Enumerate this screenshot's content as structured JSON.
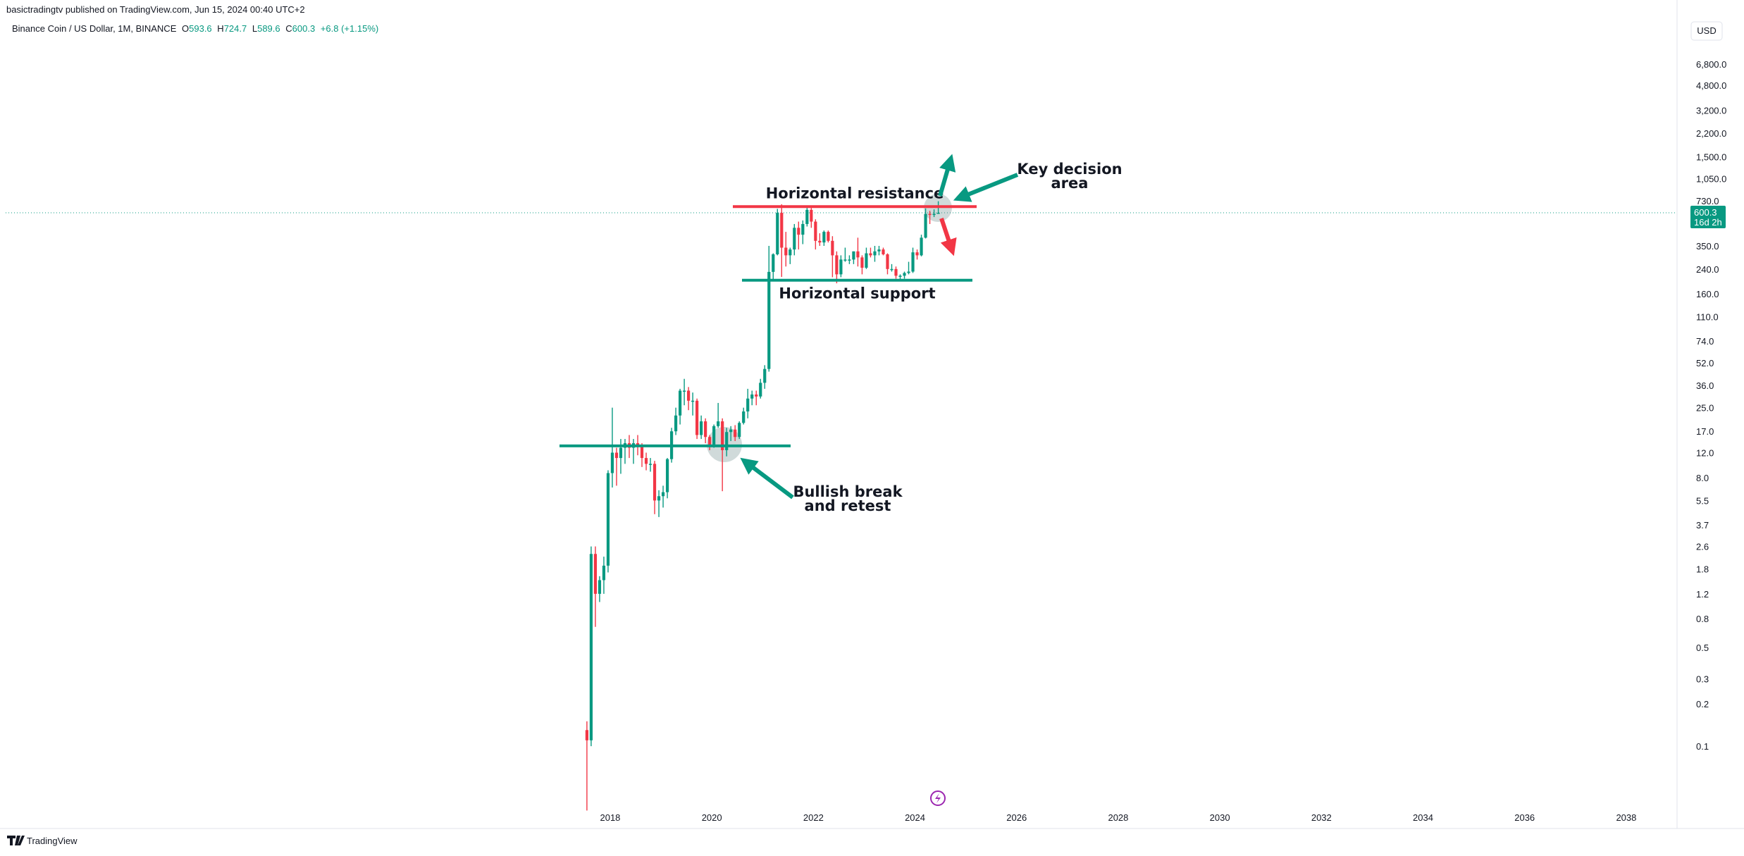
{
  "header": {
    "published": "basictradingtv published on TradingView.com, Jun 15, 2024 00:40 UTC+2",
    "symbol": "Binance Coin / US Dollar, 1M, BINANCE",
    "ohlc_letters": [
      "O",
      "H",
      "L",
      "C"
    ],
    "change": "+6.8 (+1.15%)",
    "currency": "USD",
    "countdown": "16d 2h"
  },
  "footer": "TradingView",
  "chart_data": {
    "type": "candlestick",
    "x": [
      "2017-07",
      "2017-08",
      "2017-09",
      "2017-10",
      "2017-11",
      "2017-12",
      "2018-01",
      "2018-02",
      "2018-03",
      "2018-04",
      "2018-05",
      "2018-06",
      "2018-07",
      "2018-08",
      "2018-09",
      "2018-10",
      "2018-11",
      "2018-12",
      "2019-01",
      "2019-02",
      "2019-03",
      "2019-04",
      "2019-05",
      "2019-06",
      "2019-07",
      "2019-08",
      "2019-09",
      "2019-10",
      "2019-11",
      "2019-12",
      "2020-01",
      "2020-02",
      "2020-03",
      "2020-04",
      "2020-05",
      "2020-06",
      "2020-07",
      "2020-08",
      "2020-09",
      "2020-10",
      "2020-11",
      "2020-12",
      "2021-01",
      "2021-02",
      "2021-03",
      "2021-04",
      "2021-05",
      "2021-06",
      "2021-07",
      "2021-08",
      "2021-09",
      "2021-10",
      "2021-11",
      "2021-12",
      "2022-01",
      "2022-02",
      "2022-03",
      "2022-04",
      "2022-05",
      "2022-06",
      "2022-07",
      "2022-08",
      "2022-09",
      "2022-10",
      "2022-11",
      "2022-12",
      "2023-01",
      "2023-02",
      "2023-03",
      "2023-04",
      "2023-05",
      "2023-06",
      "2023-07",
      "2023-08",
      "2023-09",
      "2023-10",
      "2023-11",
      "2023-12",
      "2024-01",
      "2024-02",
      "2024-03",
      "2024-04",
      "2024-05",
      "2024-06"
    ],
    "open": [
      0.13,
      0.11,
      2.3,
      1.2,
      1.5,
      1.9,
      8.6,
      12,
      11,
      13,
      14,
      13,
      14,
      13.5,
      11,
      10,
      10,
      5.5,
      5.9,
      6.3,
      10.8,
      17,
      22,
      33,
      33,
      28,
      28,
      16,
      20,
      15.5,
      13.7,
      18.5,
      20,
      12.5,
      16.8,
      17.5,
      15.5,
      19.5,
      23.5,
      29,
      31,
      30,
      37.5,
      47,
      229,
      305,
      600,
      340,
      300,
      330,
      470,
      420,
      500,
      630,
      520,
      380,
      370,
      440,
      380,
      300,
      220,
      280,
      280,
      280,
      320,
      290,
      245,
      310,
      300,
      320,
      330,
      305,
      240,
      240,
      215,
      215,
      225,
      230,
      315,
      300,
      400,
      590,
      580,
      593.6
    ],
    "high": [
      0.15,
      2.6,
      2.6,
      1.6,
      2.2,
      9,
      25,
      13,
      15,
      15,
      16,
      15,
      16,
      14,
      12,
      11,
      10.5,
      6.5,
      7,
      11,
      18,
      25,
      34,
      40,
      35,
      32,
      29,
      22,
      21,
      16,
      19,
      27,
      21,
      18,
      18.5,
      18.8,
      20,
      25,
      34,
      33,
      33,
      40,
      50,
      350,
      310,
      640,
      690,
      440,
      340,
      500,
      520,
      530,
      669,
      650,
      540,
      430,
      450,
      450,
      410,
      320,
      300,
      340,
      300,
      320,
      400,
      300,
      340,
      340,
      350,
      350,
      340,
      310,
      260,
      250,
      220,
      230,
      270,
      340,
      330,
      420,
      645,
      620,
      635,
      724.7
    ],
    "low": [
      0.035,
      0.1,
      0.7,
      1.05,
      1.2,
      1.7,
      6.8,
      7,
      8.5,
      10,
      11,
      10,
      11.5,
      9.5,
      9,
      8.8,
      4.4,
      4.2,
      4.9,
      5.7,
      10.2,
      16,
      19,
      26,
      24,
      22,
      15,
      15,
      14,
      12.5,
      13,
      18,
      6.4,
      11.3,
      14.5,
      14.5,
      15,
      19,
      21,
      26,
      26,
      29,
      34,
      45,
      200,
      300,
      211,
      250,
      260,
      300,
      330,
      360,
      480,
      470,
      330,
      350,
      350,
      370,
      210,
      190,
      210,
      270,
      260,
      260,
      250,
      220,
      240,
      290,
      270,
      300,
      300,
      220,
      230,
      205,
      200,
      205,
      220,
      225,
      280,
      295,
      395,
      500,
      560,
      589.6
    ],
    "close": [
      0.11,
      2.3,
      1.2,
      1.5,
      1.9,
      8.6,
      12,
      11,
      13,
      14,
      13,
      14,
      13.5,
      11,
      10,
      10,
      5.5,
      5.9,
      6.3,
      10.8,
      17,
      22,
      33,
      33,
      28,
      28,
      16,
      20,
      15.5,
      13.7,
      18.5,
      20,
      12.5,
      16.8,
      17.5,
      15.5,
      19.5,
      23.5,
      29,
      31,
      30,
      37.5,
      47,
      229,
      305,
      600,
      340,
      300,
      330,
      470,
      420,
      500,
      630,
      520,
      380,
      370,
      440,
      380,
      300,
      220,
      280,
      280,
      280,
      320,
      290,
      245,
      310,
      300,
      320,
      330,
      305,
      240,
      240,
      215,
      215,
      225,
      230,
      315,
      300,
      400,
      590,
      580,
      590,
      600.3
    ],
    "up_color": "#089981",
    "down_color": "#f23645",
    "log_scale": true,
    "ylim": [
      0.036,
      14000
    ],
    "yticks": [
      {
        "value": 6800,
        "label": "6,800.0"
      },
      {
        "value": 4800,
        "label": "4,800.0"
      },
      {
        "value": 3200,
        "label": "3,200.0"
      },
      {
        "value": 2200,
        "label": "2,200.0"
      },
      {
        "value": 1500,
        "label": "1,500.0"
      },
      {
        "value": 1050,
        "label": "1,050.0"
      },
      {
        "value": 730,
        "label": "730.0"
      },
      {
        "value": 350,
        "label": "350.0"
      },
      {
        "value": 240,
        "label": "240.0"
      },
      {
        "value": 160,
        "label": "160.0"
      },
      {
        "value": 110,
        "label": "110.0"
      },
      {
        "value": 74,
        "label": "74.0"
      },
      {
        "value": 52,
        "label": "52.0"
      },
      {
        "value": 36,
        "label": "36.0"
      },
      {
        "value": 25,
        "label": "25.0"
      },
      {
        "value": 17,
        "label": "17.0"
      },
      {
        "value": 12,
        "label": "12.0"
      },
      {
        "value": 8,
        "label": "8.0"
      },
      {
        "value": 5.5,
        "label": "5.5"
      },
      {
        "value": 3.7,
        "label": "3.7"
      },
      {
        "value": 2.6,
        "label": "2.6"
      },
      {
        "value": 1.8,
        "label": "1.8"
      },
      {
        "value": 1.2,
        "label": "1.2"
      },
      {
        "value": 0.8,
        "label": "0.8"
      },
      {
        "value": 0.5,
        "label": "0.5"
      },
      {
        "value": 0.3,
        "label": "0.3"
      },
      {
        "value": 0.2,
        "label": "0.2"
      },
      {
        "value": 0.1,
        "label": "0.1"
      }
    ],
    "xlim": [
      2006.1,
      2039
    ],
    "xticks": [
      2018,
      2020,
      2022,
      2024,
      2026,
      2028,
      2030,
      2032,
      2034,
      2036,
      2038
    ],
    "levels": [
      {
        "name": "Horizontal resistance",
        "value": 664,
        "color": "#f23645"
      },
      {
        "name": "Horizontal support",
        "value": 200,
        "color": "#089981"
      },
      {
        "value": 13.4,
        "color": "#089981"
      }
    ],
    "notes": [
      [
        "Key decision",
        "area"
      ],
      [
        "Bullish break",
        "and retest"
      ]
    ]
  }
}
